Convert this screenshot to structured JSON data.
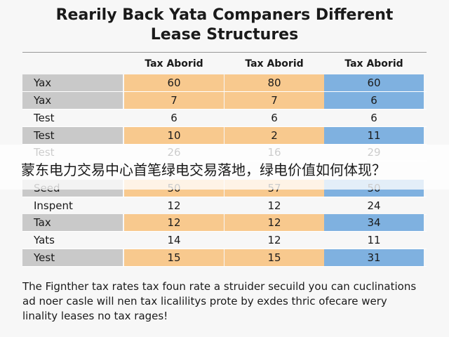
{
  "header": {
    "title": "Rearily Back Yata Companers Different Lease Structures"
  },
  "table": {
    "columns": [
      "Tax Aborid",
      "Tax Aborid",
      "Tax Aborid"
    ],
    "rows": [
      {
        "cells": [
          "Yax",
          60,
          80,
          60
        ],
        "shaded": true
      },
      {
        "cells": [
          "Yax",
          7,
          7,
          6
        ],
        "shaded": true
      },
      {
        "cells": [
          "Test",
          6,
          6,
          6
        ],
        "shaded": false
      },
      {
        "cells": [
          "Test",
          10,
          2,
          11
        ],
        "shaded": true
      },
      {
        "cells": [
          "Test",
          26,
          16,
          29
        ],
        "shaded": false
      },
      {
        "cells": [
          "Seed",
          50,
          57,
          50
        ],
        "shaded": true
      },
      {
        "cells": [
          "Inspent",
          12,
          12,
          24
        ],
        "shaded": false
      },
      {
        "cells": [
          "Tax",
          12,
          12,
          34
        ],
        "shaded": true
      },
      {
        "cells": [
          "Yats",
          14,
          12,
          11
        ],
        "shaded": false
      },
      {
        "cells": [
          "Yest",
          15,
          15,
          31
        ],
        "shaded": true
      }
    ]
  },
  "footer": {
    "text": "The Fignther tax rates tax foun rate a struider secuild you can cuclinations ad noer casle will nen tax licalilitys prote by exdes thric ofecare wery linality leases no tax rages!"
  },
  "banner": {
    "text": "蒙东电力交易中心首笔绿电交易落地，绿电价值如何体现？"
  }
}
